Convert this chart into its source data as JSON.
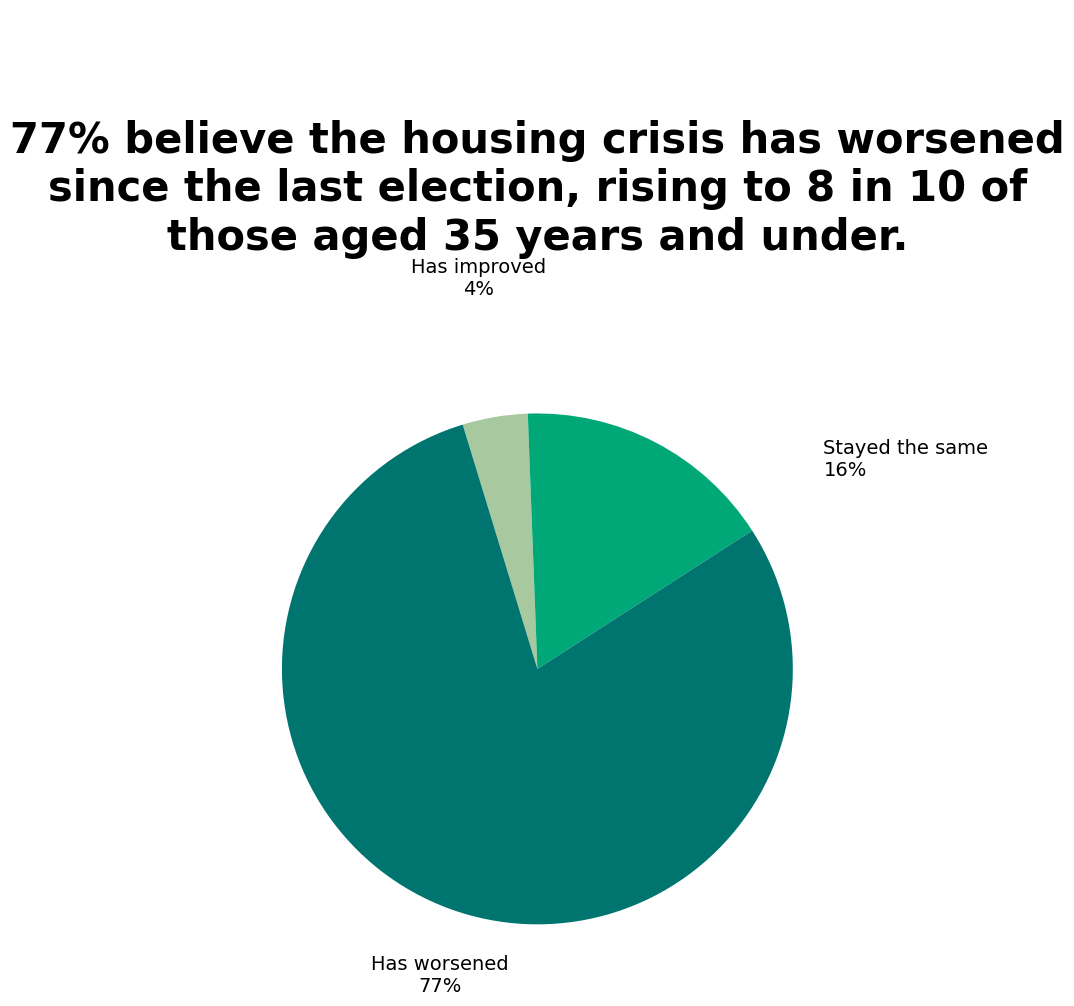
{
  "title": "77% believe the housing crisis has worsened\nsince the last election, rising to 8 in 10 of\nthose aged 35 years and under.",
  "slices": [
    77,
    4,
    16
  ],
  "labels": [
    "Has worsened",
    "Has improved",
    "Stayed the same"
  ],
  "percentages": [
    "77%",
    "4%",
    "16%"
  ],
  "colors": [
    "#007570",
    "#a8c8a0",
    "#00a878"
  ],
  "background_color": "#ffffff",
  "title_fontsize": 30,
  "label_fontsize": 14,
  "startangle": 104
}
